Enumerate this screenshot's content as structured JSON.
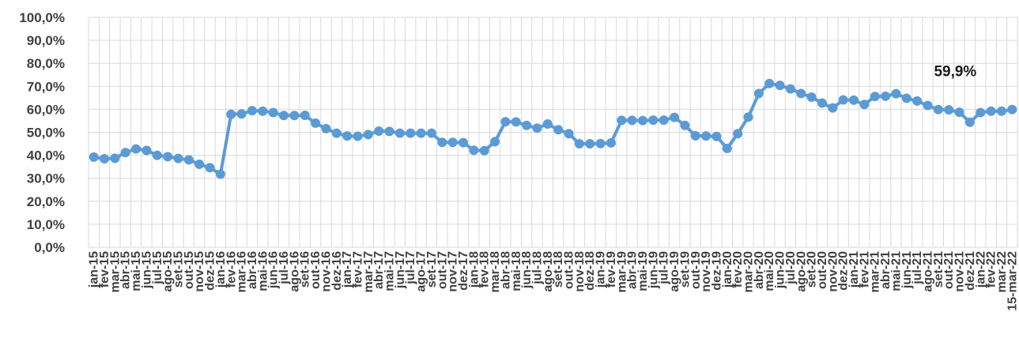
{
  "chart_data": {
    "type": "line",
    "title": "",
    "xlabel": "",
    "ylabel": "",
    "ylim": [
      0,
      100
    ],
    "y_ticks": [
      0,
      10,
      20,
      30,
      40,
      50,
      60,
      70,
      80,
      90,
      100
    ],
    "y_tick_labels": [
      "0,0%",
      "10,0%",
      "20,0%",
      "30,0%",
      "40,0%",
      "50,0%",
      "60,0%",
      "70,0%",
      "80,0%",
      "90,0%",
      "100,0%"
    ],
    "grid": true,
    "legend": "none",
    "categories": [
      "jan-15",
      "fev-15",
      "mar-15",
      "abr-15",
      "mai-15",
      "jun-15",
      "jul-15",
      "ago-15",
      "set-15",
      "out-15",
      "nov-15",
      "dez-15",
      "jan-16",
      "fev-16",
      "mar-16",
      "abr-16",
      "mai-16",
      "jun-16",
      "jul-16",
      "ago-16",
      "set-16",
      "out-16",
      "nov-16",
      "dez-16",
      "jan-17",
      "fev-17",
      "mar-17",
      "abr-17",
      "mai-17",
      "jun-17",
      "jul-17",
      "ago-17",
      "set-17",
      "out-17",
      "nov-17",
      "dez-17",
      "jan-18",
      "fev-18",
      "mar-18",
      "abr-18",
      "mai-18",
      "jun-18",
      "jul-18",
      "ago-18",
      "set-18",
      "out-18",
      "nov-18",
      "dez-18",
      "jan-19",
      "fev-19",
      "mar-19",
      "abr-19",
      "mai-19",
      "jun-19",
      "jul-19",
      "ago-19",
      "set-19",
      "out-19",
      "nov-19",
      "dez-19",
      "jan-20",
      "fev-20",
      "mar-20",
      "abr-20",
      "mai-20",
      "jun-20",
      "jul-20",
      "ago-20",
      "set-20",
      "out-20",
      "nov-20",
      "dez-20",
      "jan-21",
      "fev-21",
      "mar-21",
      "abr-21",
      "mai-21",
      "jun-21",
      "jul-21",
      "ago-21",
      "set-21",
      "out-21",
      "nov-21",
      "dez-21",
      "jan-22",
      "fev-22",
      "mar-22",
      "15-mar-22"
    ],
    "series": [
      {
        "values": [
          39.2,
          38.5,
          38.7,
          41.2,
          42.8,
          42.1,
          40.0,
          39.4,
          38.6,
          38.0,
          36.1,
          34.6,
          31.8,
          57.8,
          58.0,
          59.4,
          59.2,
          58.6,
          57.3,
          57.3,
          57.4,
          54.0,
          51.6,
          49.6,
          48.4,
          48.3,
          49.0,
          50.5,
          50.4,
          49.6,
          49.6,
          49.6,
          49.6,
          45.6,
          45.6,
          45.5,
          42.2,
          42.0,
          45.9,
          54.6,
          54.5,
          53.0,
          51.8,
          53.6,
          51.1,
          49.4,
          45.0,
          45.0,
          45.1,
          45.4,
          55.2,
          55.2,
          55.1,
          55.3,
          55.3,
          56.5,
          53.0,
          48.5,
          48.4,
          48.2,
          43.0,
          49.4,
          56.6,
          66.9,
          71.2,
          70.4,
          68.9,
          66.9,
          65.3,
          62.7,
          60.6,
          64.1,
          64.0,
          62.1,
          65.6,
          65.7,
          66.8,
          64.8,
          63.6,
          61.7,
          59.9,
          59.8,
          58.7,
          54.4,
          58.6,
          59.2,
          59.2,
          59.9
        ],
        "color": "#5b9bd5"
      }
    ],
    "annotations": [
      {
        "text": "59,9%",
        "x": "15-mar-22",
        "y": 59.9
      }
    ]
  }
}
